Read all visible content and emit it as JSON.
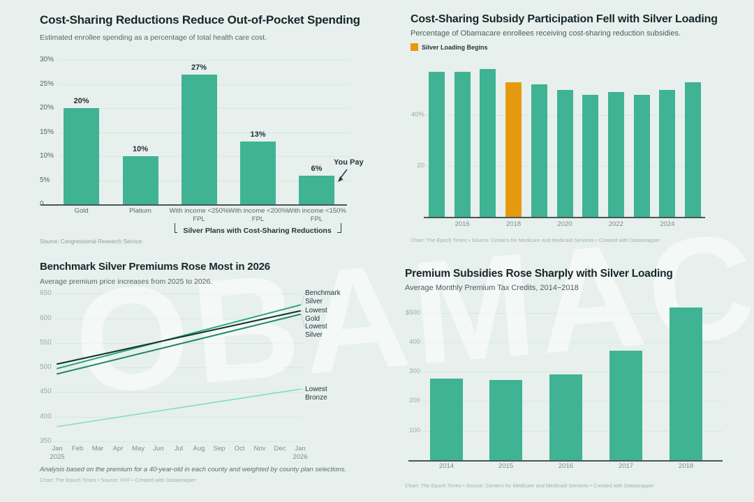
{
  "watermark": "OBAMACARE",
  "colors": {
    "background": "#e7f0ec",
    "teal": "#3fb394",
    "orange": "#e7990e",
    "title": "#16262a",
    "gridline": "#d9e6e0",
    "axis": "#465659"
  },
  "chart_data": [
    {
      "type": "bar",
      "title": "Cost-Sharing Reductions Reduce Out-of-Pocket Spending",
      "subtitle": "Estimated enrollee spending as a percentage of total health care cost.",
      "categories": [
        "Gold",
        "Platium",
        "With income <250% FPL",
        "With income <200% FPL",
        "With income <150% FPL"
      ],
      "values": [
        20,
        10,
        27,
        13,
        6
      ],
      "value_labels": [
        "20%",
        "10%",
        "27%",
        "13%",
        "6%"
      ],
      "ylim": [
        0,
        30
      ],
      "y_ticks": [
        {
          "label": "30%",
          "v": 30
        },
        {
          "label": "25%",
          "v": 25
        },
        {
          "label": "20%",
          "v": 20
        },
        {
          "label": "15%",
          "v": 15
        },
        {
          "label": "10%",
          "v": 10
        },
        {
          "label": "5%",
          "v": 5
        },
        {
          "label": "0",
          "v": 0
        }
      ],
      "annotation": "You Pay",
      "bracket_label": "Silver Plans with Cost-Sharing Reductions",
      "source": "Source: Congressional Research Service"
    },
    {
      "type": "bar",
      "title": "Cost-Sharing Subsidy Participation Fell with Silver Loading",
      "subtitle": "Percentage of Obamacare enrollees receiving cost-sharing reduction subsidies.",
      "legend": {
        "label": "Silver Loading Begins",
        "color": "#e7990e"
      },
      "categories": [
        "2015",
        "2016",
        "2017",
        "2018",
        "2019",
        "2020",
        "2021",
        "2022",
        "2023",
        "2024",
        "2025"
      ],
      "values": [
        57,
        57,
        58,
        53,
        52,
        50,
        48,
        49,
        48,
        50,
        53
      ],
      "highlight_index": 3,
      "ylim": [
        0,
        60
      ],
      "y_ticks": [
        {
          "label": "40%",
          "v": 40
        },
        {
          "label": "20",
          "v": 20
        }
      ],
      "x_ticks": [
        {
          "label": "2016",
          "bar": 1
        },
        {
          "label": "2018",
          "bar": 3
        },
        {
          "label": "2020",
          "bar": 5
        },
        {
          "label": "2022",
          "bar": 7
        },
        {
          "label": "2024",
          "bar": 9
        }
      ],
      "footer": "Chart: The Epoch Times  • Source: Centers for Medicare and Medicaid Services • Created with Datawrapper"
    },
    {
      "type": "line",
      "title": "Benchmark Silver Premiums Rose Most in 2026",
      "subtitle": "Average premium price increases from 2025 to 2026.",
      "x": [
        "Jan 2025",
        "Feb",
        "Mar",
        "Apr",
        "May",
        "Jun",
        "Jul",
        "Aug",
        "Sep",
        "Oct",
        "Nov",
        "Dec",
        "Jan 2026"
      ],
      "series": [
        {
          "name": "Benchmark Silver",
          "start": 498,
          "end": 627,
          "color": "#27a57d"
        },
        {
          "name": "Lowest Gold",
          "start": 507,
          "end": 615,
          "color": "#143028"
        },
        {
          "name": "Lowest Silver",
          "start": 487,
          "end": 608,
          "color": "#1e8a5c"
        },
        {
          "name": "Lowest Bronze",
          "start": 380,
          "end": 456,
          "color": "#7adfb6"
        }
      ],
      "ylim": [
        350,
        650
      ],
      "y_ticks": [
        {
          "label": "650",
          "v": 650
        },
        {
          "label": "600",
          "v": 600
        },
        {
          "label": "550",
          "v": 550
        },
        {
          "label": "500",
          "v": 500
        },
        {
          "label": "450",
          "v": 450
        },
        {
          "label": "400",
          "v": 400
        },
        {
          "label": "350",
          "v": 350
        }
      ],
      "note": "Analysis based on the premium for a 40-year-old in each county and weighted by county plan selections.",
      "footer": "Chart: The Epoch Times  • Source: KFF • Created with Datawrapper"
    },
    {
      "type": "bar",
      "title": "Premium Subsidies Rose Sharply with Silver Loading",
      "subtitle": "Average Monthly Premium Tax Credits, 2014−2018",
      "categories": [
        "2014",
        "2015",
        "2016",
        "2017",
        "2018"
      ],
      "values": [
        276,
        272,
        290,
        371,
        519
      ],
      "ylim": [
        0,
        520
      ],
      "y_ticks": [
        {
          "label": "$500",
          "v": 500
        },
        {
          "label": "400",
          "v": 400
        },
        {
          "label": "300",
          "v": 300
        },
        {
          "label": "200",
          "v": 200
        },
        {
          "label": "100",
          "v": 100
        }
      ],
      "footer": "Chart: The Epoch Times  • Source: Centers for Medicare and Medicaid Services • Created with Datawrapper"
    }
  ]
}
